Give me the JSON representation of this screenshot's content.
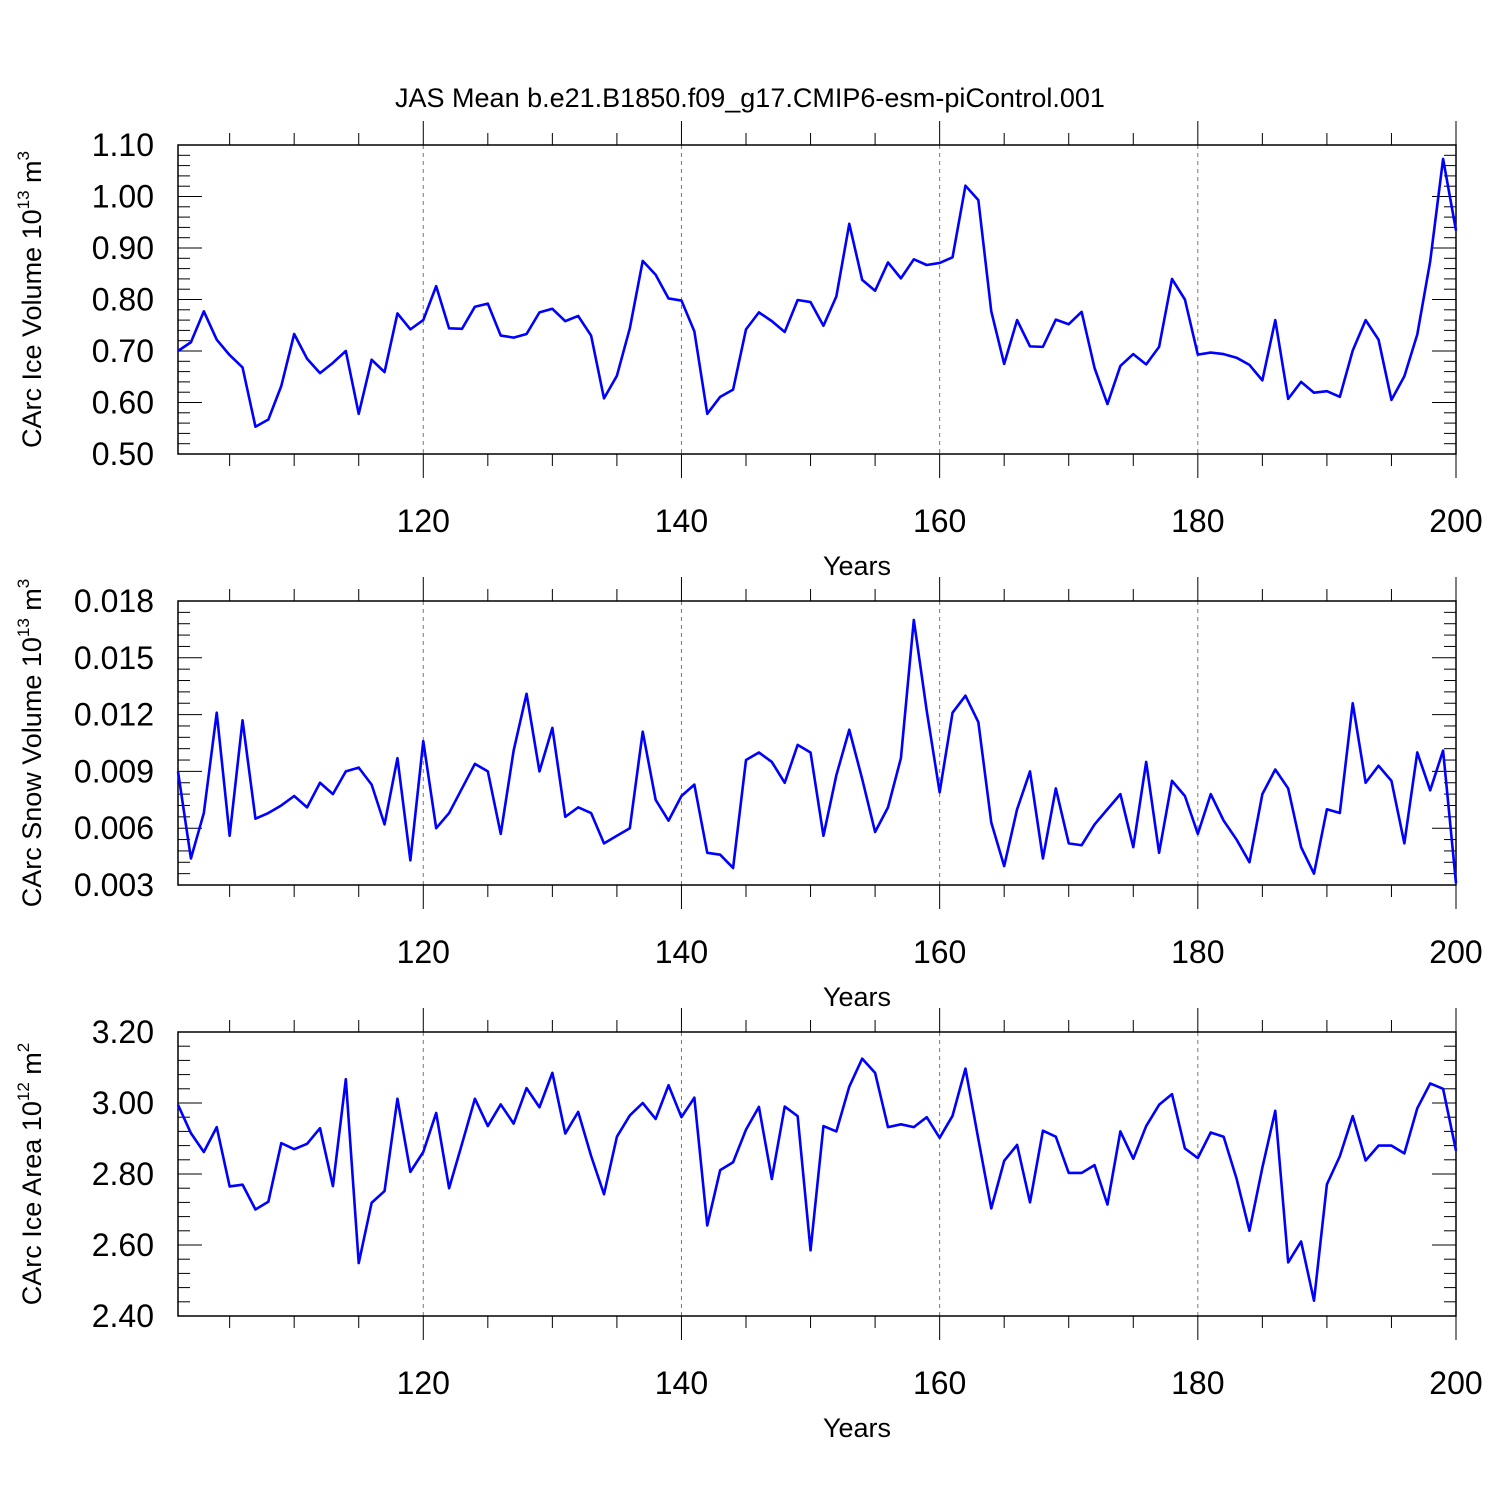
{
  "title": "JAS Mean b.e21.B1850.f09_g17.CMIP6-esm-piControl.001",
  "line_color": "#0000ff",
  "chart_data": [
    {
      "type": "line",
      "ylabel": "CArc Ice Volume 10",
      "ylabel_exp": "13",
      "ylabel_unit": "m",
      "ylabel_unit_exp": "3",
      "xlabel": "Years",
      "xlim": [
        101,
        200
      ],
      "ylim": [
        0.5,
        1.1
      ],
      "yticks": [
        "0.50",
        "0.60",
        "0.70",
        "0.80",
        "0.90",
        "1.00",
        "1.10"
      ],
      "xticks": [
        "120",
        "140",
        "160",
        "180",
        "200"
      ],
      "x_start": 101,
      "values": [
        0.7,
        0.717,
        0.777,
        0.722,
        0.692,
        0.668,
        0.553,
        0.567,
        0.632,
        0.733,
        0.685,
        0.657,
        0.677,
        0.7,
        0.578,
        0.683,
        0.659,
        0.773,
        0.742,
        0.76,
        0.826,
        0.744,
        0.743,
        0.786,
        0.792,
        0.73,
        0.726,
        0.733,
        0.775,
        0.782,
        0.758,
        0.768,
        0.73,
        0.608,
        0.652,
        0.744,
        0.875,
        0.848,
        0.802,
        0.798,
        0.738,
        0.578,
        0.611,
        0.625,
        0.742,
        0.775,
        0.758,
        0.737,
        0.799,
        0.795,
        0.749,
        0.806,
        0.947,
        0.838,
        0.817,
        0.872,
        0.841,
        0.878,
        0.867,
        0.871,
        0.882,
        1.021,
        0.993,
        0.777,
        0.675,
        0.76,
        0.709,
        0.708,
        0.761,
        0.752,
        0.776,
        0.667,
        0.597,
        0.671,
        0.694,
        0.674,
        0.708,
        0.84,
        0.8,
        0.693,
        0.697,
        0.694,
        0.687,
        0.673,
        0.643,
        0.76,
        0.607,
        0.64,
        0.619,
        0.622,
        0.611,
        0.701,
        0.76,
        0.722,
        0.605,
        0.651,
        0.732,
        0.874,
        1.073,
        0.934
      ]
    },
    {
      "type": "line",
      "ylabel": "CArc Snow Volume 10",
      "ylabel_exp": "13",
      "ylabel_unit": "m",
      "ylabel_unit_exp": "3",
      "xlabel": "Years",
      "xlim": [
        101,
        200
      ],
      "ylim": [
        0.003,
        0.018
      ],
      "yticks": [
        "0.003",
        "0.006",
        "0.009",
        "0.012",
        "0.015",
        "0.018"
      ],
      "xticks": [
        "120",
        "140",
        "160",
        "180",
        "200"
      ],
      "x_start": 101,
      "values": [
        0.009,
        0.0044,
        0.0068,
        0.0121,
        0.0056,
        0.0117,
        0.0065,
        0.0068,
        0.0072,
        0.0077,
        0.0071,
        0.0084,
        0.0078,
        0.009,
        0.0092,
        0.0083,
        0.0062,
        0.0097,
        0.0043,
        0.0106,
        0.006,
        0.0068,
        0.0081,
        0.0094,
        0.009,
        0.0057,
        0.0101,
        0.0131,
        0.009,
        0.0113,
        0.0066,
        0.0071,
        0.0068,
        0.0052,
        0.0056,
        0.006,
        0.0111,
        0.0075,
        0.0064,
        0.0077,
        0.0083,
        0.0047,
        0.0046,
        0.0039,
        0.0096,
        0.01,
        0.0095,
        0.0084,
        0.0104,
        0.01,
        0.0056,
        0.0088,
        0.0112,
        0.0086,
        0.0058,
        0.0071,
        0.0097,
        0.017,
        0.0122,
        0.0079,
        0.0121,
        0.013,
        0.0116,
        0.0063,
        0.004,
        0.007,
        0.009,
        0.0044,
        0.0081,
        0.0052,
        0.0051,
        0.0062,
        0.007,
        0.0078,
        0.005,
        0.0095,
        0.0047,
        0.0085,
        0.0077,
        0.0057,
        0.0078,
        0.0064,
        0.0054,
        0.0042,
        0.0078,
        0.0091,
        0.0081,
        0.005,
        0.0036,
        0.007,
        0.0068,
        0.0126,
        0.0084,
        0.0093,
        0.0085,
        0.0052,
        0.01,
        0.008,
        0.0101,
        0.0031
      ]
    },
    {
      "type": "line",
      "ylabel": "CArc Ice Area 10",
      "ylabel_exp": "12",
      "ylabel_unit": "m",
      "ylabel_unit_exp": "2",
      "xlabel": "Years",
      "xlim": [
        101,
        200
      ],
      "ylim": [
        2.4,
        3.2
      ],
      "yticks": [
        "2.40",
        "2.60",
        "2.80",
        "3.00",
        "3.20"
      ],
      "xticks": [
        "120",
        "140",
        "160",
        "180",
        "200"
      ],
      "x_start": 101,
      "values": [
        2.995,
        2.915,
        2.862,
        2.932,
        2.765,
        2.77,
        2.7,
        2.722,
        2.887,
        2.87,
        2.885,
        2.929,
        2.766,
        3.067,
        2.549,
        2.719,
        2.752,
        3.012,
        2.806,
        2.862,
        2.972,
        2.76,
        2.885,
        3.012,
        2.935,
        2.996,
        2.942,
        3.042,
        2.988,
        3.085,
        2.914,
        2.975,
        2.851,
        2.743,
        2.905,
        2.965,
        3.0,
        2.955,
        3.05,
        2.96,
        3.015,
        2.655,
        2.811,
        2.833,
        2.925,
        2.989,
        2.786,
        2.99,
        2.963,
        2.585,
        2.935,
        2.92,
        3.046,
        3.125,
        3.085,
        2.932,
        2.94,
        2.932,
        2.96,
        2.902,
        2.964,
        3.097,
        2.898,
        2.703,
        2.837,
        2.882,
        2.72,
        2.922,
        2.905,
        2.803,
        2.803,
        2.825,
        2.714,
        2.92,
        2.843,
        2.935,
        2.995,
        3.025,
        2.872,
        2.845,
        2.917,
        2.905,
        2.787,
        2.64,
        2.818,
        2.978,
        2.551,
        2.61,
        2.443,
        2.771,
        2.85,
        2.963,
        2.838,
        2.88,
        2.88,
        2.858,
        2.985,
        3.055,
        3.04,
        2.866
      ]
    }
  ]
}
